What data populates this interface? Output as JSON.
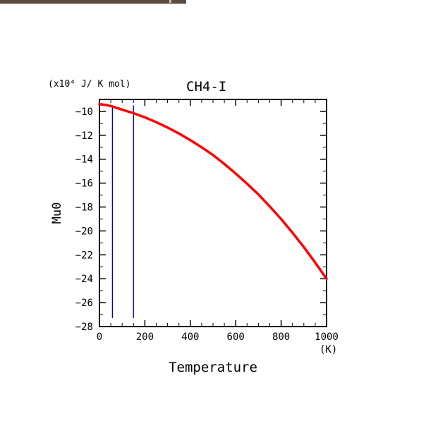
{
  "window": {
    "bar_color": "#5a4a40"
  },
  "chart_data": {
    "type": "line",
    "title": "CH4-I",
    "unit_label": "(x10⁴ J/ K mol)",
    "xlabel": "Temperature",
    "x_unit": "(K)",
    "ylabel": "Mu0",
    "xlim": [
      0,
      1000
    ],
    "ylim": [
      -28,
      -9
    ],
    "x_ticks": [
      0,
      200,
      400,
      600,
      800,
      1000
    ],
    "y_ticks": [
      -10,
      -12,
      -14,
      -16,
      -18,
      -20,
      -22,
      -24,
      -26,
      -28
    ],
    "grid": false,
    "series": [
      {
        "color": "#ff0000",
        "x": [
          0,
          25,
          50,
          75,
          100,
          150,
          200,
          250,
          300,
          350,
          400,
          450,
          500,
          550,
          600,
          650,
          700,
          750,
          800,
          850,
          900,
          950,
          1000
        ],
        "y": [
          -9.4,
          -9.45,
          -9.55,
          -9.7,
          -9.85,
          -10.15,
          -10.5,
          -10.9,
          -11.35,
          -11.85,
          -12.4,
          -13.0,
          -13.65,
          -14.4,
          -15.2,
          -16.05,
          -16.95,
          -17.95,
          -19.0,
          -20.15,
          -21.35,
          -22.65,
          -24.0
        ]
      }
    ],
    "vlines": [
      {
        "x": 57,
        "y_from": -27.3,
        "y_to": -9.5,
        "color": "#0000cc"
      },
      {
        "x": 150,
        "y_from": -27.3,
        "y_to": -9.5,
        "color": "#0000cc"
      }
    ]
  }
}
